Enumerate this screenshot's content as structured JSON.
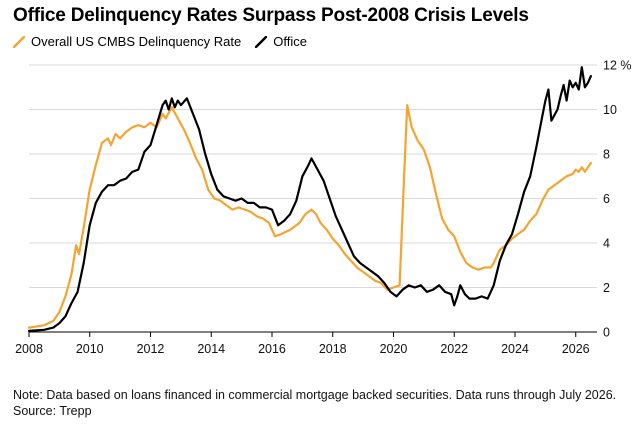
{
  "header": {
    "title": "Office Delinquency Rates Surpass Post-2008 Crisis Levels"
  },
  "notes": {
    "note": "Note: Data based on loans financed in commercial mortgage backed securities. Data runs through July 2026.",
    "source": "Source: Trepp"
  },
  "colors": {
    "overall": "#f5a431",
    "office": "#000000",
    "grid": "#d9d9d9",
    "axis": "#000000"
  },
  "chart_data": {
    "type": "line",
    "title": "Office Delinquency Rates Surpass Post-2008 Crisis Levels",
    "xlabel": "",
    "ylabel": "",
    "y_unit": "%",
    "xlim": [
      2008,
      2026.7
    ],
    "ylim": [
      0,
      12
    ],
    "x_ticks": [
      2008,
      2010,
      2012,
      2014,
      2016,
      2018,
      2020,
      2022,
      2024,
      2026
    ],
    "y_ticks": [
      0,
      2,
      4,
      6,
      8,
      10,
      12
    ],
    "grid": true,
    "legend_position": "top-left",
    "series": [
      {
        "name": "Overall US CMBS Delinquency Rate",
        "color": "#f5a431",
        "points": [
          [
            2008.0,
            0.2
          ],
          [
            2008.5,
            0.3
          ],
          [
            2008.8,
            0.5
          ],
          [
            2009.0,
            0.9
          ],
          [
            2009.2,
            1.6
          ],
          [
            2009.4,
            2.6
          ],
          [
            2009.55,
            3.9
          ],
          [
            2009.65,
            3.5
          ],
          [
            2009.8,
            4.7
          ],
          [
            2010.0,
            6.4
          ],
          [
            2010.2,
            7.5
          ],
          [
            2010.4,
            8.5
          ],
          [
            2010.6,
            8.7
          ],
          [
            2010.7,
            8.4
          ],
          [
            2010.85,
            8.9
          ],
          [
            2011.0,
            8.7
          ],
          [
            2011.2,
            9.0
          ],
          [
            2011.4,
            9.2
          ],
          [
            2011.6,
            9.3
          ],
          [
            2011.8,
            9.2
          ],
          [
            2012.0,
            9.4
          ],
          [
            2012.2,
            9.2
          ],
          [
            2012.4,
            9.8
          ],
          [
            2012.5,
            9.6
          ],
          [
            2012.7,
            10.1
          ],
          [
            2012.9,
            9.6
          ],
          [
            2013.1,
            9.1
          ],
          [
            2013.3,
            8.5
          ],
          [
            2013.5,
            7.8
          ],
          [
            2013.7,
            7.3
          ],
          [
            2013.9,
            6.4
          ],
          [
            2014.1,
            6.0
          ],
          [
            2014.3,
            5.9
          ],
          [
            2014.5,
            5.7
          ],
          [
            2014.7,
            5.5
          ],
          [
            2014.9,
            5.6
          ],
          [
            2015.1,
            5.5
          ],
          [
            2015.3,
            5.4
          ],
          [
            2015.5,
            5.2
          ],
          [
            2015.7,
            5.1
          ],
          [
            2015.9,
            4.9
          ],
          [
            2016.1,
            4.3
          ],
          [
            2016.3,
            4.4
          ],
          [
            2016.6,
            4.6
          ],
          [
            2016.9,
            4.9
          ],
          [
            2017.1,
            5.3
          ],
          [
            2017.3,
            5.5
          ],
          [
            2017.45,
            5.3
          ],
          [
            2017.6,
            4.9
          ],
          [
            2017.8,
            4.6
          ],
          [
            2018.0,
            4.2
          ],
          [
            2018.2,
            3.9
          ],
          [
            2018.4,
            3.5
          ],
          [
            2018.6,
            3.2
          ],
          [
            2018.8,
            2.9
          ],
          [
            2019.0,
            2.7
          ],
          [
            2019.2,
            2.5
          ],
          [
            2019.4,
            2.3
          ],
          [
            2019.6,
            2.2
          ],
          [
            2019.8,
            1.9
          ],
          [
            2020.0,
            2.0
          ],
          [
            2020.2,
            2.1
          ],
          [
            2020.35,
            7.0
          ],
          [
            2020.45,
            10.2
          ],
          [
            2020.6,
            9.2
          ],
          [
            2020.8,
            8.6
          ],
          [
            2021.0,
            8.2
          ],
          [
            2021.2,
            7.4
          ],
          [
            2021.4,
            6.2
          ],
          [
            2021.6,
            5.1
          ],
          [
            2021.8,
            4.6
          ],
          [
            2022.0,
            4.3
          ],
          [
            2022.2,
            3.6
          ],
          [
            2022.4,
            3.1
          ],
          [
            2022.6,
            2.9
          ],
          [
            2022.8,
            2.8
          ],
          [
            2023.0,
            2.9
          ],
          [
            2023.2,
            2.9
          ],
          [
            2023.3,
            3.1
          ],
          [
            2023.5,
            3.7
          ],
          [
            2023.7,
            3.9
          ],
          [
            2023.9,
            4.2
          ],
          [
            2024.1,
            4.4
          ],
          [
            2024.3,
            4.6
          ],
          [
            2024.5,
            5.0
          ],
          [
            2024.7,
            5.3
          ],
          [
            2024.9,
            5.9
          ],
          [
            2025.1,
            6.4
          ],
          [
            2025.3,
            6.6
          ],
          [
            2025.5,
            6.8
          ],
          [
            2025.7,
            7.0
          ],
          [
            2025.9,
            7.1
          ],
          [
            2026.0,
            7.3
          ],
          [
            2026.1,
            7.2
          ],
          [
            2026.2,
            7.4
          ],
          [
            2026.3,
            7.2
          ],
          [
            2026.4,
            7.4
          ],
          [
            2026.5,
            7.6
          ]
        ]
      },
      {
        "name": "Office",
        "color": "#000000",
        "points": [
          [
            2008.0,
            0.05
          ],
          [
            2008.5,
            0.1
          ],
          [
            2008.8,
            0.2
          ],
          [
            2009.0,
            0.4
          ],
          [
            2009.2,
            0.7
          ],
          [
            2009.4,
            1.3
          ],
          [
            2009.6,
            1.8
          ],
          [
            2009.8,
            3.1
          ],
          [
            2010.0,
            4.8
          ],
          [
            2010.2,
            5.8
          ],
          [
            2010.4,
            6.3
          ],
          [
            2010.6,
            6.6
          ],
          [
            2010.8,
            6.6
          ],
          [
            2011.0,
            6.8
          ],
          [
            2011.2,
            6.9
          ],
          [
            2011.4,
            7.2
          ],
          [
            2011.6,
            7.3
          ],
          [
            2011.8,
            8.1
          ],
          [
            2012.0,
            8.4
          ],
          [
            2012.2,
            9.3
          ],
          [
            2012.4,
            10.2
          ],
          [
            2012.5,
            10.4
          ],
          [
            2012.6,
            10.0
          ],
          [
            2012.7,
            10.5
          ],
          [
            2012.8,
            10.1
          ],
          [
            2012.9,
            10.4
          ],
          [
            2013.0,
            10.2
          ],
          [
            2013.2,
            10.5
          ],
          [
            2013.4,
            9.8
          ],
          [
            2013.6,
            9.1
          ],
          [
            2013.8,
            8.0
          ],
          [
            2014.0,
            7.1
          ],
          [
            2014.2,
            6.4
          ],
          [
            2014.4,
            6.1
          ],
          [
            2014.6,
            6.0
          ],
          [
            2014.8,
            5.9
          ],
          [
            2015.0,
            6.0
          ],
          [
            2015.2,
            5.8
          ],
          [
            2015.4,
            5.8
          ],
          [
            2015.6,
            5.6
          ],
          [
            2015.8,
            5.6
          ],
          [
            2016.0,
            5.5
          ],
          [
            2016.2,
            4.8
          ],
          [
            2016.4,
            5.0
          ],
          [
            2016.6,
            5.3
          ],
          [
            2016.8,
            5.9
          ],
          [
            2017.0,
            7.0
          ],
          [
            2017.2,
            7.5
          ],
          [
            2017.3,
            7.8
          ],
          [
            2017.5,
            7.3
          ],
          [
            2017.7,
            6.8
          ],
          [
            2017.9,
            6.0
          ],
          [
            2018.1,
            5.2
          ],
          [
            2018.3,
            4.6
          ],
          [
            2018.5,
            4.0
          ],
          [
            2018.7,
            3.4
          ],
          [
            2018.9,
            3.1
          ],
          [
            2019.1,
            2.9
          ],
          [
            2019.3,
            2.7
          ],
          [
            2019.5,
            2.5
          ],
          [
            2019.7,
            2.2
          ],
          [
            2019.9,
            1.8
          ],
          [
            2020.1,
            1.6
          ],
          [
            2020.3,
            1.9
          ],
          [
            2020.5,
            2.1
          ],
          [
            2020.7,
            2.0
          ],
          [
            2020.9,
            2.1
          ],
          [
            2021.1,
            1.8
          ],
          [
            2021.3,
            1.9
          ],
          [
            2021.5,
            2.1
          ],
          [
            2021.7,
            1.8
          ],
          [
            2021.9,
            1.7
          ],
          [
            2022.0,
            1.2
          ],
          [
            2022.1,
            1.6
          ],
          [
            2022.2,
            2.1
          ],
          [
            2022.35,
            1.7
          ],
          [
            2022.5,
            1.5
          ],
          [
            2022.7,
            1.5
          ],
          [
            2022.9,
            1.6
          ],
          [
            2023.1,
            1.5
          ],
          [
            2023.3,
            2.1
          ],
          [
            2023.5,
            3.2
          ],
          [
            2023.7,
            3.9
          ],
          [
            2023.9,
            4.4
          ],
          [
            2024.1,
            5.3
          ],
          [
            2024.3,
            6.3
          ],
          [
            2024.5,
            7.0
          ],
          [
            2024.7,
            8.3
          ],
          [
            2024.9,
            9.7
          ],
          [
            2025.0,
            10.4
          ],
          [
            2025.1,
            10.9
          ],
          [
            2025.2,
            9.5
          ],
          [
            2025.4,
            10.0
          ],
          [
            2025.5,
            10.6
          ],
          [
            2025.6,
            11.1
          ],
          [
            2025.7,
            10.4
          ],
          [
            2025.8,
            11.3
          ],
          [
            2025.9,
            11.0
          ],
          [
            2026.0,
            11.2
          ],
          [
            2026.1,
            10.9
          ],
          [
            2026.2,
            11.9
          ],
          [
            2026.3,
            11.0
          ],
          [
            2026.4,
            11.2
          ],
          [
            2026.5,
            11.5
          ]
        ]
      }
    ]
  }
}
